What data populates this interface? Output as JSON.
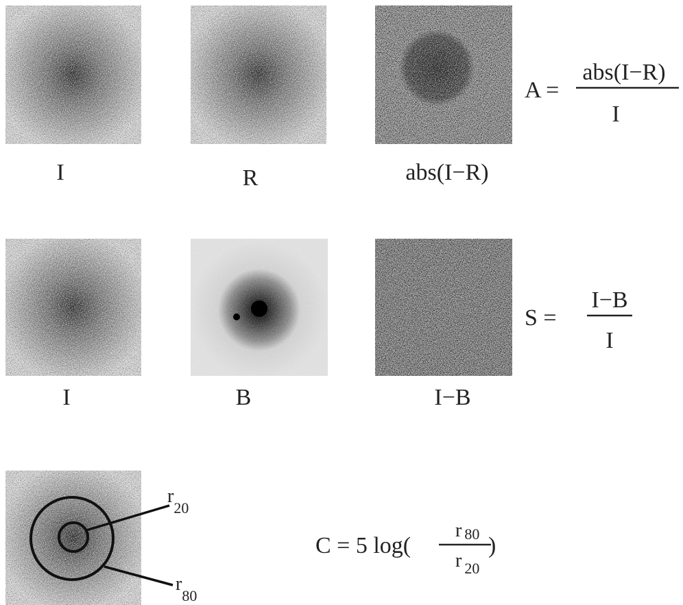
{
  "rows": [
    {
      "panels": [
        "I",
        "R",
        "abs(I−R)"
      ],
      "formula": {
        "lhs": "A =",
        "numerator": "abs(I−R)",
        "denominator": "I"
      }
    },
    {
      "panels": [
        "I",
        "B",
        "I−B"
      ],
      "formula": {
        "lhs": "S =",
        "numerator": "I−B",
        "denominator": "I"
      }
    }
  ],
  "concentration": {
    "inner_label": {
      "base": "r",
      "sub": "20"
    },
    "outer_label": {
      "base": "r",
      "sub": "80"
    },
    "formula": {
      "lhs": "C = 5 log(",
      "numerator": {
        "base": "r",
        "sub": "80"
      },
      "denominator": {
        "base": "r",
        "sub": "20"
      },
      "rhs": ")"
    }
  }
}
